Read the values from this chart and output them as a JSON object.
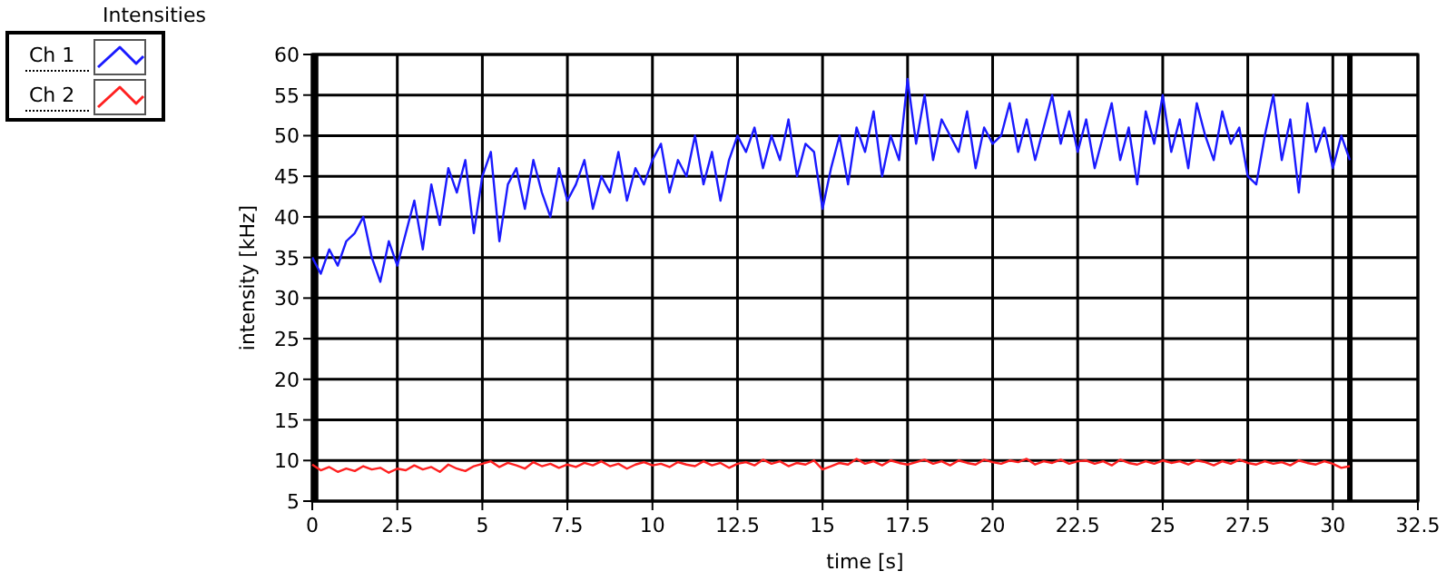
{
  "chart_data": {
    "type": "line",
    "title": "Intensities",
    "xlabel": "time [s]",
    "ylabel": "intensity [kHz]",
    "x": [
      0,
      0.25,
      0.5,
      0.75,
      1,
      1.25,
      1.5,
      1.75,
      2,
      2.25,
      2.5,
      2.75,
      3,
      3.25,
      3.5,
      3.75,
      4,
      4.25,
      4.5,
      4.75,
      5,
      5.25,
      5.5,
      5.75,
      6,
      6.25,
      6.5,
      6.75,
      7,
      7.25,
      7.5,
      7.75,
      8,
      8.25,
      8.5,
      8.75,
      9,
      9.25,
      9.5,
      9.75,
      10,
      10.25,
      10.5,
      10.75,
      11,
      11.25,
      11.5,
      11.75,
      12,
      12.25,
      12.5,
      12.75,
      13,
      13.25,
      13.5,
      13.75,
      14,
      14.25,
      14.5,
      14.75,
      15,
      15.25,
      15.5,
      15.75,
      16,
      16.25,
      16.5,
      16.75,
      17,
      17.25,
      17.5,
      17.75,
      18,
      18.25,
      18.5,
      18.75,
      19,
      19.25,
      19.5,
      19.75,
      20,
      20.25,
      20.5,
      20.75,
      21,
      21.25,
      21.5,
      21.75,
      22,
      22.25,
      22.5,
      22.75,
      23,
      23.25,
      23.5,
      23.75,
      24,
      24.25,
      24.5,
      24.75,
      25,
      25.25,
      25.5,
      25.75,
      26,
      26.25,
      26.5,
      26.75,
      27,
      27.25,
      27.5,
      27.75,
      28,
      28.25,
      28.5,
      28.75,
      29,
      29.25,
      29.5,
      29.75,
      30,
      30.25,
      30.5
    ],
    "series": [
      {
        "name": "Ch 1",
        "color": "#1a1aff",
        "values": [
          35,
          33,
          36,
          34,
          37,
          38,
          40,
          35,
          32,
          37,
          34,
          38,
          42,
          36,
          44,
          39,
          46,
          43,
          47,
          38,
          45,
          48,
          37,
          44,
          46,
          41,
          47,
          43,
          40,
          46,
          42,
          44,
          47,
          41,
          45,
          43,
          48,
          42,
          46,
          44,
          47,
          49,
          43,
          47,
          45,
          50,
          44,
          48,
          42,
          47,
          50,
          48,
          51,
          46,
          50,
          47,
          52,
          45,
          49,
          48,
          41,
          46,
          50,
          44,
          51,
          48,
          53,
          45,
          50,
          47,
          57,
          49,
          55,
          47,
          52,
          50,
          48,
          53,
          46,
          51,
          49,
          50,
          54,
          48,
          52,
          47,
          51,
          55,
          49,
          53,
          48,
          52,
          46,
          50,
          54,
          47,
          51,
          44,
          53,
          49,
          55,
          48,
          52,
          46,
          54,
          50,
          47,
          53,
          49,
          51,
          45,
          44,
          50,
          55,
          47,
          52,
          43,
          54,
          48,
          51,
          46,
          50,
          47
        ]
      },
      {
        "name": "Ch 2",
        "color": "#ff2020",
        "values": [
          9.5,
          8.8,
          9.2,
          8.6,
          9.0,
          8.7,
          9.3,
          8.9,
          9.1,
          8.5,
          9.0,
          8.8,
          9.4,
          8.9,
          9.2,
          8.6,
          9.5,
          9.0,
          8.7,
          9.3,
          9.6,
          9.9,
          9.2,
          9.7,
          9.4,
          9.0,
          9.8,
          9.3,
          9.6,
          9.1,
          9.5,
          9.2,
          9.7,
          9.4,
          9.9,
          9.3,
          9.6,
          9.0,
          9.5,
          9.8,
          9.4,
          9.6,
          9.2,
          9.8,
          9.5,
          9.3,
          9.9,
          9.4,
          9.7,
          9.1,
          9.6,
          9.8,
          9.4,
          10.1,
          9.6,
          9.9,
          9.3,
          9.7,
          9.5,
          10.0,
          8.9,
          9.3,
          9.7,
          9.5,
          10.2,
          9.6,
          9.9,
          9.4,
          10.0,
          9.7,
          9.5,
          9.8,
          10.1,
          9.6,
          9.9,
          9.4,
          10.0,
          9.7,
          9.5,
          10.1,
          9.8,
          9.6,
          10.0,
          9.8,
          10.2,
          9.5,
          9.9,
          9.7,
          10.1,
          9.6,
          9.9,
          10.0,
          9.6,
          9.9,
          9.4,
          10.1,
          9.7,
          9.5,
          9.9,
          9.6,
          10.0,
          9.7,
          9.9,
          9.5,
          10.0,
          9.8,
          9.4,
          9.9,
          9.6,
          10.1,
          9.7,
          9.5,
          9.9,
          9.6,
          9.8,
          9.4,
          10.0,
          9.7,
          9.5,
          9.9,
          9.6,
          9.1,
          9.3
        ]
      }
    ],
    "xlim": [
      0,
      32.5
    ],
    "xticks": [
      0,
      2.5,
      5,
      7.5,
      10,
      12.5,
      15,
      17.5,
      20,
      22.5,
      25,
      27.5,
      30,
      32.5
    ],
    "ylim": [
      5,
      60
    ],
    "yticks": [
      5,
      10,
      15,
      20,
      25,
      30,
      35,
      40,
      45,
      50,
      55,
      60
    ],
    "ref_lines": [
      {
        "axis": "x",
        "value": 0.1,
        "color": "#000000"
      },
      {
        "axis": "x",
        "value": 30.5,
        "color": "#000000"
      }
    ],
    "grid": true,
    "legend": "top left",
    "marker": "none",
    "line_style": "solid"
  }
}
